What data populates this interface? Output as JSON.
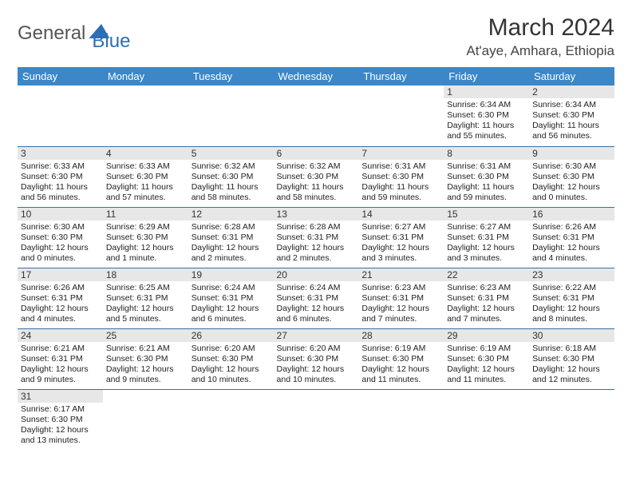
{
  "logo": {
    "part1": "General",
    "part2": "Blue"
  },
  "title": "March 2024",
  "location": "At'aye, Amhara, Ethiopia",
  "colors": {
    "header_bg": "#3b87c8",
    "daynum_bg": "#e7e7e7",
    "row_border": "#3b6fa8",
    "logo_blue": "#2d6fb3"
  },
  "weekdays": [
    "Sunday",
    "Monday",
    "Tuesday",
    "Wednesday",
    "Thursday",
    "Friday",
    "Saturday"
  ],
  "weeks": [
    [
      null,
      null,
      null,
      null,
      null,
      {
        "n": "1",
        "sr": "Sunrise: 6:34 AM",
        "ss": "Sunset: 6:30 PM",
        "dl": "Daylight: 11 hours and 55 minutes."
      },
      {
        "n": "2",
        "sr": "Sunrise: 6:34 AM",
        "ss": "Sunset: 6:30 PM",
        "dl": "Daylight: 11 hours and 56 minutes."
      }
    ],
    [
      {
        "n": "3",
        "sr": "Sunrise: 6:33 AM",
        "ss": "Sunset: 6:30 PM",
        "dl": "Daylight: 11 hours and 56 minutes."
      },
      {
        "n": "4",
        "sr": "Sunrise: 6:33 AM",
        "ss": "Sunset: 6:30 PM",
        "dl": "Daylight: 11 hours and 57 minutes."
      },
      {
        "n": "5",
        "sr": "Sunrise: 6:32 AM",
        "ss": "Sunset: 6:30 PM",
        "dl": "Daylight: 11 hours and 58 minutes."
      },
      {
        "n": "6",
        "sr": "Sunrise: 6:32 AM",
        "ss": "Sunset: 6:30 PM",
        "dl": "Daylight: 11 hours and 58 minutes."
      },
      {
        "n": "7",
        "sr": "Sunrise: 6:31 AM",
        "ss": "Sunset: 6:30 PM",
        "dl": "Daylight: 11 hours and 59 minutes."
      },
      {
        "n": "8",
        "sr": "Sunrise: 6:31 AM",
        "ss": "Sunset: 6:30 PM",
        "dl": "Daylight: 11 hours and 59 minutes."
      },
      {
        "n": "9",
        "sr": "Sunrise: 6:30 AM",
        "ss": "Sunset: 6:30 PM",
        "dl": "Daylight: 12 hours and 0 minutes."
      }
    ],
    [
      {
        "n": "10",
        "sr": "Sunrise: 6:30 AM",
        "ss": "Sunset: 6:30 PM",
        "dl": "Daylight: 12 hours and 0 minutes."
      },
      {
        "n": "11",
        "sr": "Sunrise: 6:29 AM",
        "ss": "Sunset: 6:30 PM",
        "dl": "Daylight: 12 hours and 1 minute."
      },
      {
        "n": "12",
        "sr": "Sunrise: 6:28 AM",
        "ss": "Sunset: 6:31 PM",
        "dl": "Daylight: 12 hours and 2 minutes."
      },
      {
        "n": "13",
        "sr": "Sunrise: 6:28 AM",
        "ss": "Sunset: 6:31 PM",
        "dl": "Daylight: 12 hours and 2 minutes."
      },
      {
        "n": "14",
        "sr": "Sunrise: 6:27 AM",
        "ss": "Sunset: 6:31 PM",
        "dl": "Daylight: 12 hours and 3 minutes."
      },
      {
        "n": "15",
        "sr": "Sunrise: 6:27 AM",
        "ss": "Sunset: 6:31 PM",
        "dl": "Daylight: 12 hours and 3 minutes."
      },
      {
        "n": "16",
        "sr": "Sunrise: 6:26 AM",
        "ss": "Sunset: 6:31 PM",
        "dl": "Daylight: 12 hours and 4 minutes."
      }
    ],
    [
      {
        "n": "17",
        "sr": "Sunrise: 6:26 AM",
        "ss": "Sunset: 6:31 PM",
        "dl": "Daylight: 12 hours and 4 minutes."
      },
      {
        "n": "18",
        "sr": "Sunrise: 6:25 AM",
        "ss": "Sunset: 6:31 PM",
        "dl": "Daylight: 12 hours and 5 minutes."
      },
      {
        "n": "19",
        "sr": "Sunrise: 6:24 AM",
        "ss": "Sunset: 6:31 PM",
        "dl": "Daylight: 12 hours and 6 minutes."
      },
      {
        "n": "20",
        "sr": "Sunrise: 6:24 AM",
        "ss": "Sunset: 6:31 PM",
        "dl": "Daylight: 12 hours and 6 minutes."
      },
      {
        "n": "21",
        "sr": "Sunrise: 6:23 AM",
        "ss": "Sunset: 6:31 PM",
        "dl": "Daylight: 12 hours and 7 minutes."
      },
      {
        "n": "22",
        "sr": "Sunrise: 6:23 AM",
        "ss": "Sunset: 6:31 PM",
        "dl": "Daylight: 12 hours and 7 minutes."
      },
      {
        "n": "23",
        "sr": "Sunrise: 6:22 AM",
        "ss": "Sunset: 6:31 PM",
        "dl": "Daylight: 12 hours and 8 minutes."
      }
    ],
    [
      {
        "n": "24",
        "sr": "Sunrise: 6:21 AM",
        "ss": "Sunset: 6:31 PM",
        "dl": "Daylight: 12 hours and 9 minutes."
      },
      {
        "n": "25",
        "sr": "Sunrise: 6:21 AM",
        "ss": "Sunset: 6:30 PM",
        "dl": "Daylight: 12 hours and 9 minutes."
      },
      {
        "n": "26",
        "sr": "Sunrise: 6:20 AM",
        "ss": "Sunset: 6:30 PM",
        "dl": "Daylight: 12 hours and 10 minutes."
      },
      {
        "n": "27",
        "sr": "Sunrise: 6:20 AM",
        "ss": "Sunset: 6:30 PM",
        "dl": "Daylight: 12 hours and 10 minutes."
      },
      {
        "n": "28",
        "sr": "Sunrise: 6:19 AM",
        "ss": "Sunset: 6:30 PM",
        "dl": "Daylight: 12 hours and 11 minutes."
      },
      {
        "n": "29",
        "sr": "Sunrise: 6:19 AM",
        "ss": "Sunset: 6:30 PM",
        "dl": "Daylight: 12 hours and 11 minutes."
      },
      {
        "n": "30",
        "sr": "Sunrise: 6:18 AM",
        "ss": "Sunset: 6:30 PM",
        "dl": "Daylight: 12 hours and 12 minutes."
      }
    ],
    [
      {
        "n": "31",
        "sr": "Sunrise: 6:17 AM",
        "ss": "Sunset: 6:30 PM",
        "dl": "Daylight: 12 hours and 13 minutes."
      },
      null,
      null,
      null,
      null,
      null,
      null
    ]
  ]
}
